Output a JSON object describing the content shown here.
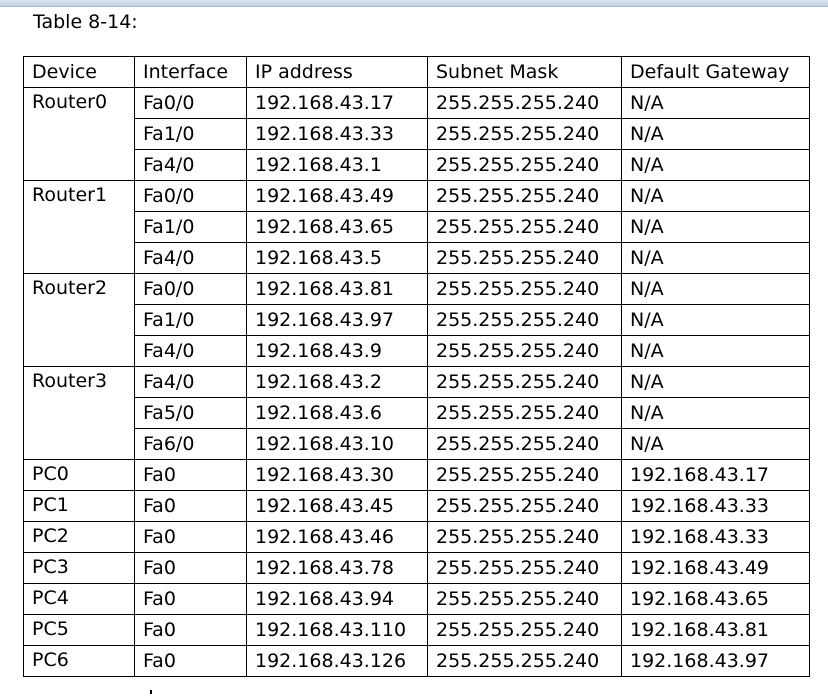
{
  "caption": "Table 8-14:",
  "columns": [
    "Device",
    "Interface",
    "IP address",
    "Subnet Mask",
    "Default Gateway"
  ],
  "groups": [
    {
      "device": "Router0",
      "rows": [
        {
          "interface": "Fa0/0",
          "ip": "192.168.43.17",
          "mask": "255.255.255.240",
          "gateway": "N/A"
        },
        {
          "interface": "Fa1/0",
          "ip": "192.168.43.33",
          "mask": "255.255.255.240",
          "gateway": "N/A"
        },
        {
          "interface": "Fa4/0",
          "ip": "192.168.43.1",
          "mask": "255.255.255.240",
          "gateway": "N/A"
        }
      ]
    },
    {
      "device": "Router1",
      "rows": [
        {
          "interface": "Fa0/0",
          "ip": "192.168.43.49",
          "mask": "255.255.255.240",
          "gateway": "N/A"
        },
        {
          "interface": "Fa1/0",
          "ip": "192.168.43.65",
          "mask": "255.255.255.240",
          "gateway": "N/A"
        },
        {
          "interface": "Fa4/0",
          "ip": "192.168.43.5",
          "mask": "255.255.255.240",
          "gateway": "N/A"
        }
      ]
    },
    {
      "device": "Router2",
      "rows": [
        {
          "interface": "Fa0/0",
          "ip": "192.168.43.81",
          "mask": "255.255.255.240",
          "gateway": "N/A"
        },
        {
          "interface": "Fa1/0",
          "ip": "192.168.43.97",
          "mask": "255.255.255.240",
          "gateway": "N/A"
        },
        {
          "interface": "Fa4/0",
          "ip": "192.168.43.9",
          "mask": "255.255.255.240",
          "gateway": "N/A"
        }
      ]
    },
    {
      "device": "Router3",
      "rows": [
        {
          "interface": "Fa4/0",
          "ip": "192.168.43.2",
          "mask": "255.255.255.240",
          "gateway": "N/A"
        },
        {
          "interface": "Fa5/0",
          "ip": "192.168.43.6",
          "mask": "255.255.255.240",
          "gateway": "N/A"
        },
        {
          "interface": "Fa6/0",
          "ip": "192.168.43.10",
          "mask": "255.255.255.240",
          "gateway": "N/A"
        }
      ]
    },
    {
      "device": "PC0",
      "rows": [
        {
          "interface": "Fa0",
          "ip": "192.168.43.30",
          "mask": "255.255.255.240",
          "gateway": "192.168.43.17"
        }
      ]
    },
    {
      "device": "PC1",
      "rows": [
        {
          "interface": "Fa0",
          "ip": "192.168.43.45",
          "mask": "255.255.255.240",
          "gateway": "192.168.43.33"
        }
      ]
    },
    {
      "device": "PC2",
      "rows": [
        {
          "interface": "Fa0",
          "ip": "192.168.43.46",
          "mask": "255.255.255.240",
          "gateway": "192.168.43.33"
        }
      ]
    },
    {
      "device": "PC3",
      "rows": [
        {
          "interface": "Fa0",
          "ip": "192.168.43.78",
          "mask": "255.255.255.240",
          "gateway": "192.168.43.49"
        }
      ]
    },
    {
      "device": "PC4",
      "rows": [
        {
          "interface": "Fa0",
          "ip": "192.168.43.94",
          "mask": "255.255.255.240",
          "gateway": "192.168.43.65"
        }
      ]
    },
    {
      "device": "PC5",
      "rows": [
        {
          "interface": "Fa0",
          "ip": "192.168.43.110",
          "mask": "255.255.255.240",
          "gateway": "192.168.43.81"
        }
      ]
    },
    {
      "device": "PC6",
      "rows": [
        {
          "interface": "Fa0",
          "ip": "192.168.43.126",
          "mask": "255.255.255.240",
          "gateway": "192.168.43.97"
        }
      ]
    }
  ]
}
